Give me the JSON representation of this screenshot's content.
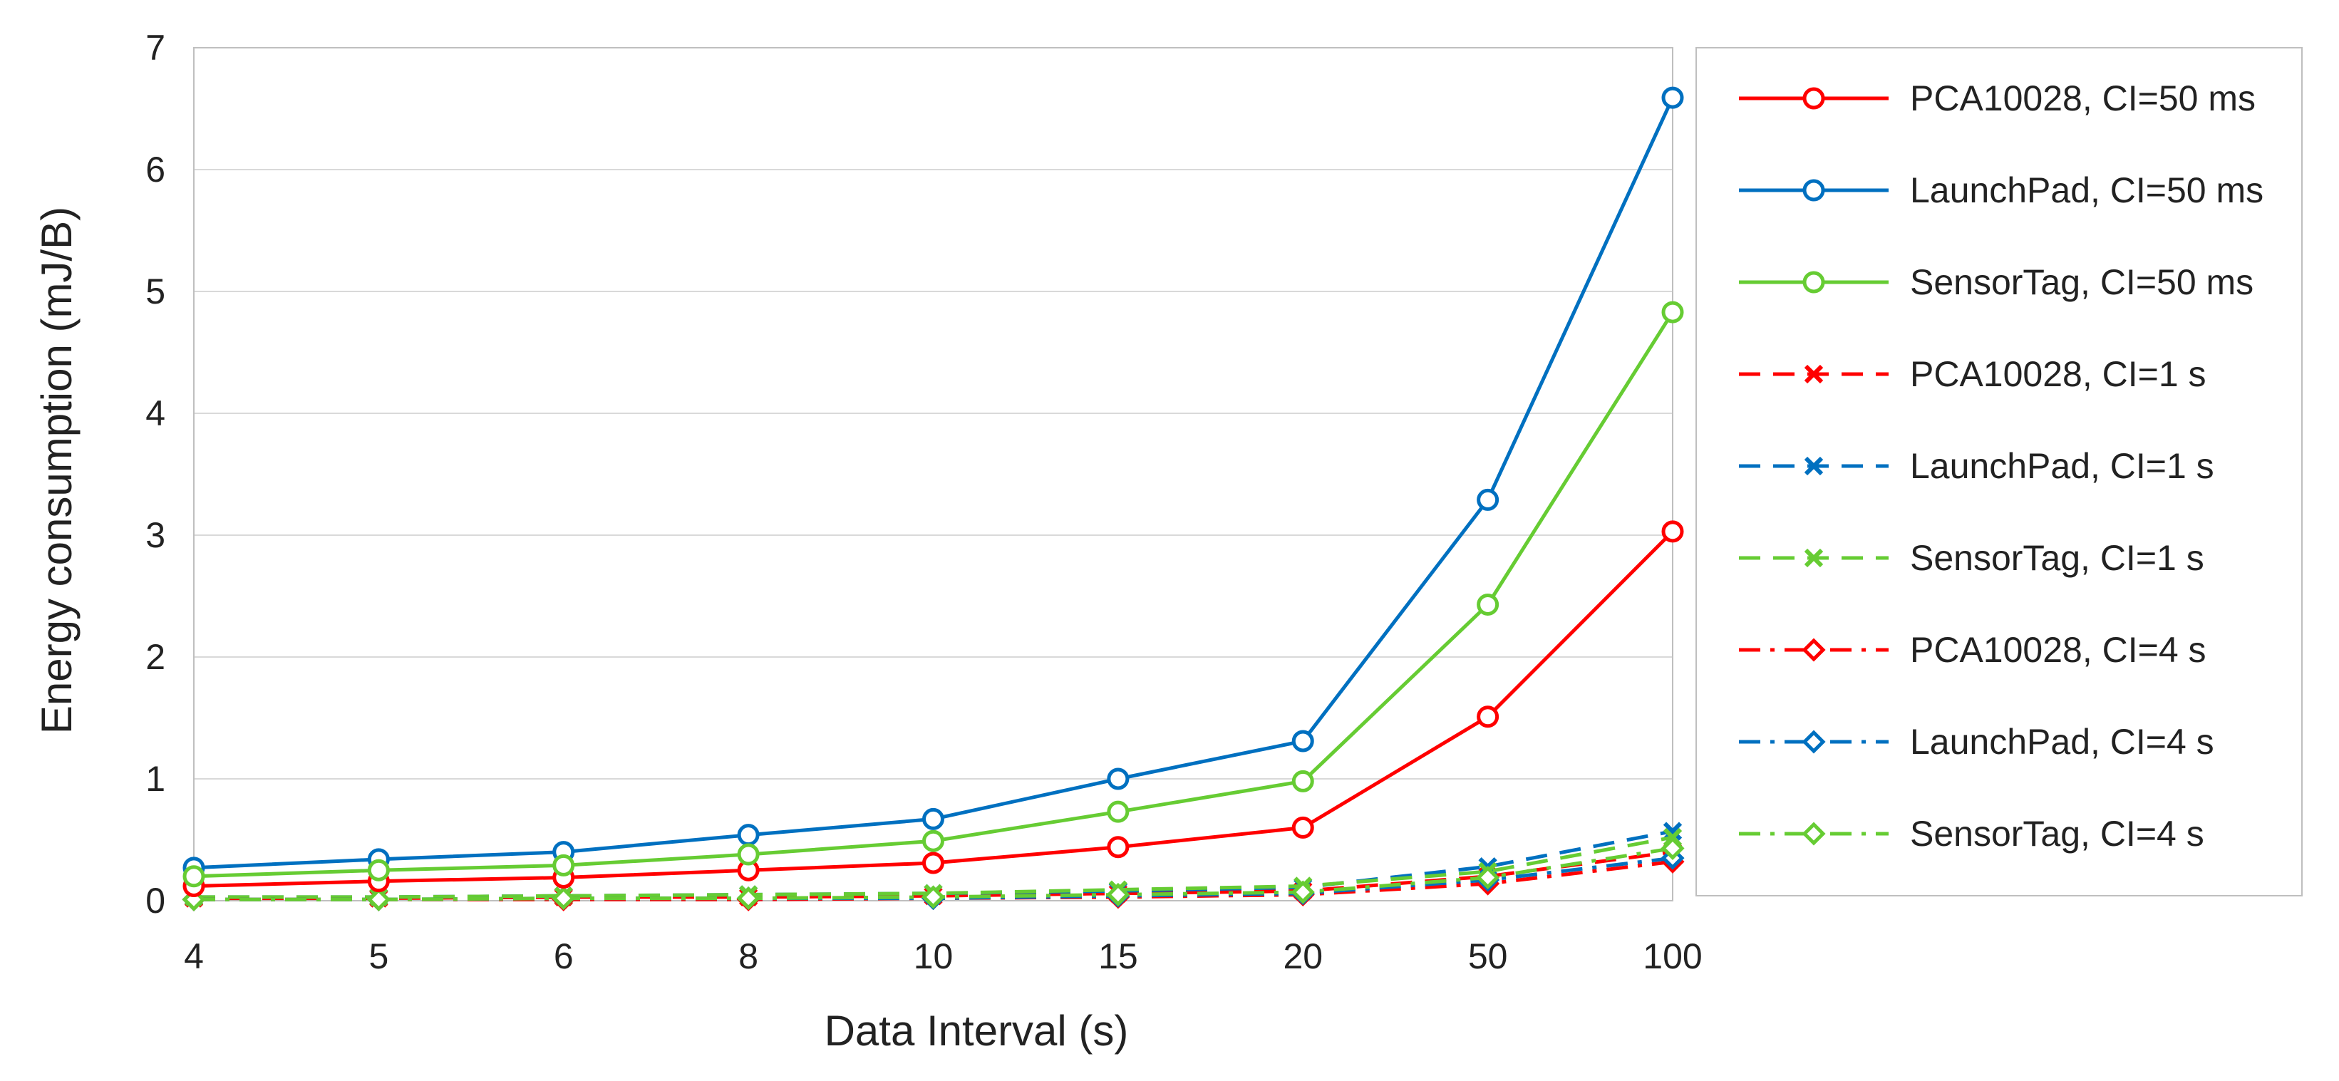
{
  "chart_data": {
    "type": "line",
    "title": "",
    "xlabel": "Data Interval (s)",
    "ylabel": "Energy consumption (mJ/B)",
    "categories": [
      "4",
      "5",
      "6",
      "8",
      "10",
      "15",
      "20",
      "50",
      "100"
    ],
    "ylim": [
      0,
      7
    ],
    "yticks": [
      "0",
      "1",
      "2",
      "3",
      "4",
      "5",
      "6",
      "7"
    ],
    "grid": true,
    "legend_position": "right",
    "series": [
      {
        "name": "PCA10028, CI=50 ms",
        "color": "#ff0000",
        "dash": "solid",
        "marker": "circle",
        "values": [
          0.12,
          0.16,
          0.19,
          0.25,
          0.31,
          0.44,
          0.6,
          1.51,
          3.03
        ]
      },
      {
        "name": "LaunchPad, CI=50 ms",
        "color": "#0070c0",
        "dash": "solid",
        "marker": "circle",
        "values": [
          0.27,
          0.34,
          0.4,
          0.54,
          0.67,
          1.0,
          1.31,
          3.29,
          6.59
        ]
      },
      {
        "name": "SensorTag, CI=50 ms",
        "color": "#66cc33",
        "dash": "solid",
        "marker": "circle",
        "values": [
          0.2,
          0.25,
          0.29,
          0.38,
          0.49,
          0.73,
          0.98,
          2.43,
          4.83
        ]
      },
      {
        "name": "PCA10028, CI=1 s",
        "color": "#ff0000",
        "dash": "dash",
        "marker": "x",
        "values": [
          0.02,
          0.02,
          0.03,
          0.03,
          0.04,
          0.06,
          0.08,
          0.2,
          0.4
        ]
      },
      {
        "name": "LaunchPad, CI=1 s",
        "color": "#0070c0",
        "dash": "dash",
        "marker": "x",
        "values": [
          0.03,
          0.03,
          0.04,
          0.05,
          0.06,
          0.08,
          0.11,
          0.28,
          0.57
        ]
      },
      {
        "name": "SensorTag, CI=1 s",
        "color": "#66cc33",
        "dash": "dash",
        "marker": "x",
        "values": [
          0.03,
          0.03,
          0.04,
          0.05,
          0.06,
          0.09,
          0.12,
          0.24,
          0.52
        ]
      },
      {
        "name": "PCA10028, CI=4 s",
        "color": "#ff0000",
        "dash": "dashdot",
        "marker": "diamond",
        "values": [
          0.01,
          0.01,
          0.01,
          0.01,
          0.02,
          0.03,
          0.05,
          0.14,
          0.32
        ]
      },
      {
        "name": "LaunchPad, CI=4 s",
        "color": "#0070c0",
        "dash": "dashdot",
        "marker": "diamond",
        "values": [
          0.01,
          0.01,
          0.02,
          0.02,
          0.02,
          0.04,
          0.06,
          0.17,
          0.35
        ]
      },
      {
        "name": "SensorTag, CI=4 s",
        "color": "#66cc33",
        "dash": "dashdot",
        "marker": "diamond",
        "values": [
          0.01,
          0.01,
          0.02,
          0.02,
          0.03,
          0.05,
          0.07,
          0.19,
          0.43
        ]
      }
    ]
  }
}
